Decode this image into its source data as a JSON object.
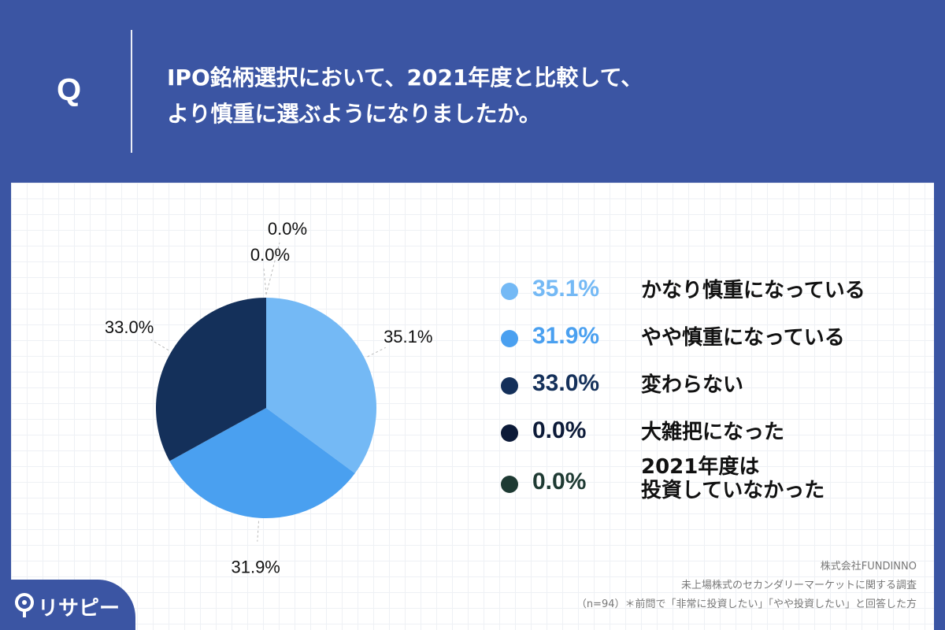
{
  "header": {
    "q_mark": "Q",
    "question_line1": "IPO銘柄選択において、2021年度と比較して、",
    "question_line2": "より慎重に選ぶようになりましたか。"
  },
  "chart_data": {
    "type": "pie",
    "title": "IPO銘柄選択において、2021年度と比較して、より慎重に選ぶようになりましたか。",
    "categories": [
      "かなり慎重になっている",
      "やや慎重になっている",
      "変わらない",
      "大雑把になった",
      "2021年度は投資していなかった"
    ],
    "values": [
      35.1,
      31.9,
      33.0,
      0.0,
      0.0
    ],
    "data_labels": [
      "35.1%",
      "31.9%",
      "33.0%",
      "0.0%",
      "0.0%"
    ],
    "colors": [
      "#74b9f5",
      "#4aa0f0",
      "#14305a",
      "#0c1a38",
      "#1e3a33"
    ]
  },
  "legend": {
    "items": [
      {
        "pct": "35.1%",
        "label": "かなり慎重になっている",
        "color": "#74b9f5"
      },
      {
        "pct": "31.9%",
        "label": "やや慎重になっている",
        "color": "#4aa0f0"
      },
      {
        "pct": "33.0%",
        "label": "変わらない",
        "color": "#14305a"
      },
      {
        "pct": "0.0%",
        "label": "大雑把になった",
        "color": "#0c1a38"
      },
      {
        "pct": "0.0%",
        "label": "2021年度は",
        "label2": "投資していなかった",
        "color": "#1e3a33"
      }
    ]
  },
  "footer": {
    "line1": "株式会社FUNDINNO",
    "line2": "未上場株式のセカンダリーマーケットに関する調査",
    "line3": "（n=94）＊前問で「非常に投資したい」「やや投資したい」と回答した方"
  },
  "logo": {
    "text": "リサピー"
  }
}
